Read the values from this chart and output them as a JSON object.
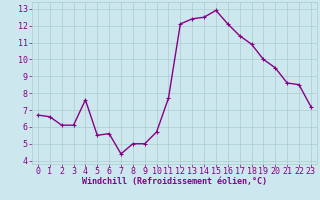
{
  "x": [
    0,
    1,
    2,
    3,
    4,
    5,
    6,
    7,
    8,
    9,
    10,
    11,
    12,
    13,
    14,
    15,
    16,
    17,
    18,
    19,
    20,
    21,
    22,
    23
  ],
  "y": [
    6.7,
    6.6,
    6.1,
    6.1,
    7.6,
    5.5,
    5.6,
    4.4,
    5.0,
    5.0,
    5.7,
    7.7,
    12.1,
    12.4,
    12.5,
    12.9,
    12.1,
    11.4,
    10.9,
    10.0,
    9.5,
    8.6,
    8.5,
    7.2
  ],
  "line_color": "#880088",
  "marker": "+",
  "marker_color": "#880088",
  "bg_color": "#cce8ee",
  "grid_color": "#aacccc",
  "xlabel": "Windchill (Refroidissement éolien,°C)",
  "tick_color": "#880088",
  "xlim": [
    -0.5,
    23.5
  ],
  "ylim": [
    3.8,
    13.4
  ],
  "yticks": [
    4,
    5,
    6,
    7,
    8,
    9,
    10,
    11,
    12,
    13
  ],
  "xticks": [
    0,
    1,
    2,
    3,
    4,
    5,
    6,
    7,
    8,
    9,
    10,
    11,
    12,
    13,
    14,
    15,
    16,
    17,
    18,
    19,
    20,
    21,
    22,
    23
  ],
  "linewidth": 1.0,
  "markersize": 3,
  "tick_fontsize": 6,
  "xlabel_fontsize": 6
}
